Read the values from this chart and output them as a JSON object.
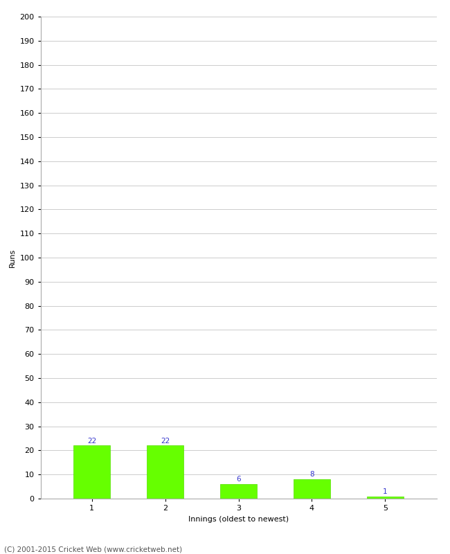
{
  "xlabel": "Innings (oldest to newest)",
  "ylabel": "Runs",
  "categories": [
    "1",
    "2",
    "3",
    "4",
    "5"
  ],
  "values": [
    22,
    22,
    6,
    8,
    1
  ],
  "bar_color": "#66ff00",
  "bar_edge_color": "#55dd00",
  "label_color": "#3333cc",
  "ylim": [
    0,
    200
  ],
  "yticks": [
    0,
    10,
    20,
    30,
    40,
    50,
    60,
    70,
    80,
    90,
    100,
    110,
    120,
    130,
    140,
    150,
    160,
    170,
    180,
    190,
    200
  ],
  "background_color": "#ffffff",
  "grid_color": "#cccccc",
  "footer": "(C) 2001-2015 Cricket Web (www.cricketweb.net)",
  "label_fontsize": 7.5,
  "axis_tick_fontsize": 8,
  "axis_label_fontsize": 8,
  "footer_fontsize": 7.5,
  "bar_width": 0.5
}
